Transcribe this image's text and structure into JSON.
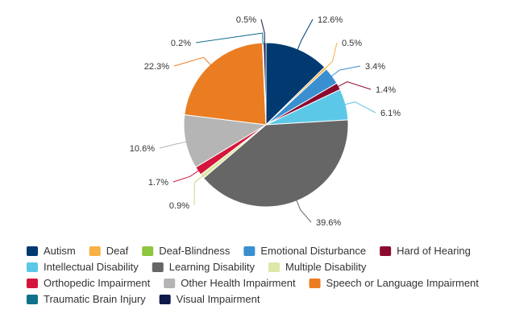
{
  "chart_data": {
    "type": "pie",
    "title": "",
    "slices": [
      {
        "name": "Autism",
        "value": 12.6,
        "label": "12.6%",
        "color": "#003a70"
      },
      {
        "name": "Deaf",
        "value": 0.5,
        "label": "0.5%",
        "color": "#f7b043"
      },
      {
        "name": "Deaf-Blindness",
        "value": 0.0,
        "label": "",
        "color": "#8dc63f"
      },
      {
        "name": "Emotional Disturbance",
        "value": 3.4,
        "label": "3.4%",
        "color": "#3a8fd1"
      },
      {
        "name": "Hard of Hearing",
        "value": 1.4,
        "label": "1.4%",
        "color": "#8b0a2d"
      },
      {
        "name": "Intellectual Disability",
        "value": 6.1,
        "label": "6.1%",
        "color": "#5bc8e8"
      },
      {
        "name": "Learning Disability",
        "value": 39.6,
        "label": "39.6%",
        "color": "#666666"
      },
      {
        "name": "Multiple Disability",
        "value": 0.9,
        "label": "0.9%",
        "color": "#dde8a8"
      },
      {
        "name": "Orthopedic Impairment",
        "value": 1.7,
        "label": "1.7%",
        "color": "#d4163c"
      },
      {
        "name": "Other Health Impairment",
        "value": 10.6,
        "label": "10.6%",
        "color": "#b5b5b5"
      },
      {
        "name": "Speech or Language Impairment",
        "value": 22.3,
        "label": "22.3%",
        "color": "#ea7d22"
      },
      {
        "name": "Traumatic Brain Injury",
        "value": 0.2,
        "label": "0.2%",
        "color": "#11708c"
      },
      {
        "name": "Visual Impairment",
        "value": 0.5,
        "label": "0.5%",
        "color": "#0d1a4a"
      }
    ],
    "legend_position": "bottom"
  }
}
